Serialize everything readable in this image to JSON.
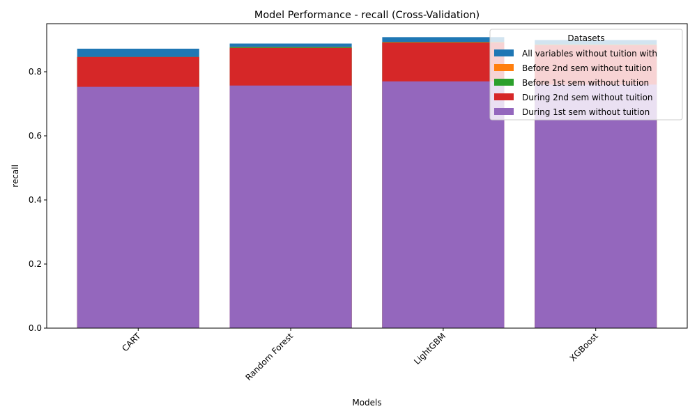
{
  "chart_data": {
    "type": "bar",
    "title": "Model Performance - recall (Cross-Validation)",
    "xlabel": "Models",
    "ylabel": "recall",
    "ylim": [
      0,
      0.95
    ],
    "yticks": [
      "0.0",
      "0.2",
      "0.4",
      "0.6",
      "0.8"
    ],
    "grid": false,
    "legend": {
      "title": "Datasets",
      "placement": "top-right"
    },
    "categories": [
      "CART",
      "Random Forest",
      "LightGBM",
      "XGBoost"
    ],
    "series": [
      {
        "name": "All variables without tuition with",
        "color": "#1f77b4",
        "values": [
          0.872,
          0.888,
          0.908,
          0.899
        ]
      },
      {
        "name": "Before 2nd sem without tuition",
        "color": "#ff7f0e",
        "values": [
          0.846,
          0.877,
          0.893,
          0.885
        ]
      },
      {
        "name": "Before 1st sem without tuition",
        "color": "#2ca02c",
        "values": [
          0.846,
          0.876,
          0.892,
          0.884
        ]
      },
      {
        "name": "During 2nd sem without tuition",
        "color": "#d62728",
        "values": [
          0.846,
          0.874,
          0.891,
          0.883
        ]
      },
      {
        "name": "During 1st sem without tuition",
        "color": "#9467bd",
        "values": [
          0.753,
          0.757,
          0.77,
          0.76
        ]
      }
    ]
  }
}
